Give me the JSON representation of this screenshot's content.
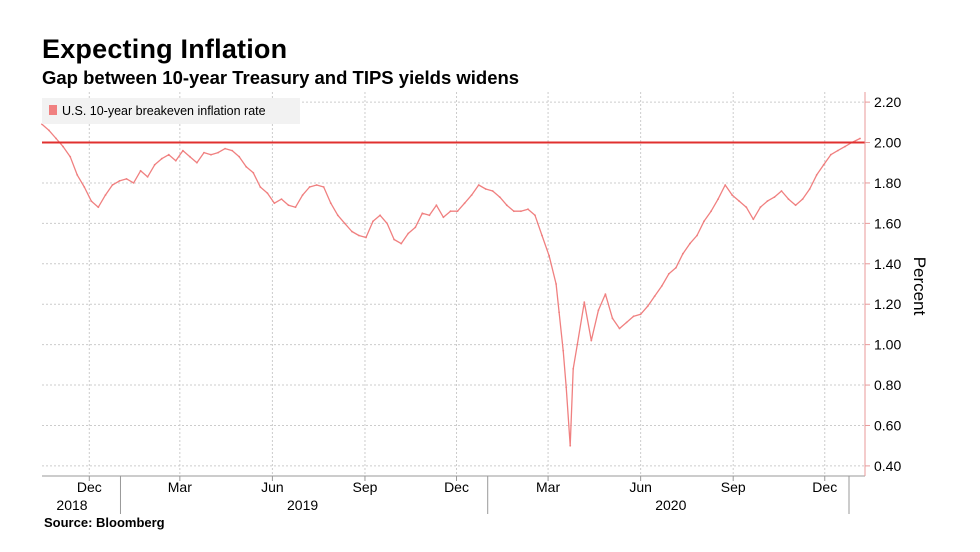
{
  "title": "Expecting Inflation",
  "subtitle": "Gap between 10-year Treasury and TIPS yields widens",
  "source": "Source: Bloomberg",
  "colors": {
    "series": "#f08080",
    "reference_line": "#e0302f",
    "grid": "#cccccc",
    "axis": "#e89a9a",
    "legend_bg": "#f2f2f2"
  },
  "chart_data": {
    "type": "line",
    "title": "Expecting Inflation",
    "subtitle": "Gap between 10-year Treasury and TIPS yields widens",
    "xlabel": "",
    "ylabel": "Percent",
    "ylim": [
      0.35,
      2.25
    ],
    "xlim": [
      "2018-10-15",
      "2021-01-10"
    ],
    "y_axis_side": "right",
    "grid": true,
    "legend_position": "top-left",
    "y_ticks": [
      "2.20",
      "2.00",
      "1.80",
      "1.60",
      "1.40",
      "1.20",
      "1.00",
      "0.80",
      "0.60",
      "0.40"
    ],
    "x_ticks": [
      {
        "date": "2018-12-01",
        "label": "Dec"
      },
      {
        "date": "2019-03-01",
        "label": "Mar"
      },
      {
        "date": "2019-06-01",
        "label": "Jun"
      },
      {
        "date": "2019-09-01",
        "label": "Sep"
      },
      {
        "date": "2019-12-01",
        "label": "Dec"
      },
      {
        "date": "2020-03-01",
        "label": "Mar"
      },
      {
        "date": "2020-06-01",
        "label": "Jun"
      },
      {
        "date": "2020-09-01",
        "label": "Sep"
      },
      {
        "date": "2020-12-01",
        "label": "Dec"
      }
    ],
    "year_labels": [
      {
        "date": "2018-11-10",
        "label": "2018"
      },
      {
        "date": "2019-07-01",
        "label": "2019"
      },
      {
        "date": "2020-07-01",
        "label": "2020"
      }
    ],
    "year_separators": [
      "2019-01-01",
      "2020-01-01",
      "2021-01-01"
    ],
    "reference_lines": [
      {
        "y": 2.0
      }
    ],
    "series": [
      {
        "name": "U.S. 10-year breakeven inflation rate",
        "x": [
          "2018-10-15",
          "2018-10-22",
          "2018-10-29",
          "2018-11-05",
          "2018-11-12",
          "2018-11-19",
          "2018-11-26",
          "2018-12-03",
          "2018-12-10",
          "2018-12-17",
          "2018-12-24",
          "2018-12-31",
          "2019-01-07",
          "2019-01-14",
          "2019-01-21",
          "2019-01-28",
          "2019-02-04",
          "2019-02-11",
          "2019-02-18",
          "2019-02-25",
          "2019-03-04",
          "2019-03-11",
          "2019-03-18",
          "2019-03-25",
          "2019-04-01",
          "2019-04-08",
          "2019-04-15",
          "2019-04-22",
          "2019-04-29",
          "2019-05-06",
          "2019-05-13",
          "2019-05-20",
          "2019-05-27",
          "2019-06-03",
          "2019-06-10",
          "2019-06-17",
          "2019-06-24",
          "2019-07-01",
          "2019-07-08",
          "2019-07-15",
          "2019-07-22",
          "2019-07-29",
          "2019-08-05",
          "2019-08-12",
          "2019-08-19",
          "2019-08-26",
          "2019-09-02",
          "2019-09-09",
          "2019-09-16",
          "2019-09-23",
          "2019-09-30",
          "2019-10-07",
          "2019-10-14",
          "2019-10-21",
          "2019-10-28",
          "2019-11-04",
          "2019-11-11",
          "2019-11-18",
          "2019-11-25",
          "2019-12-02",
          "2019-12-09",
          "2019-12-16",
          "2019-12-23",
          "2019-12-30",
          "2020-01-06",
          "2020-01-13",
          "2020-01-20",
          "2020-01-27",
          "2020-02-03",
          "2020-02-10",
          "2020-02-17",
          "2020-02-24",
          "2020-03-02",
          "2020-03-09",
          "2020-03-12",
          "2020-03-16",
          "2020-03-19",
          "2020-03-23",
          "2020-03-26",
          "2020-03-30",
          "2020-04-06",
          "2020-04-13",
          "2020-04-20",
          "2020-04-27",
          "2020-05-04",
          "2020-05-11",
          "2020-05-18",
          "2020-05-25",
          "2020-06-01",
          "2020-06-08",
          "2020-06-15",
          "2020-06-22",
          "2020-06-29",
          "2020-07-06",
          "2020-07-13",
          "2020-07-20",
          "2020-07-27",
          "2020-08-03",
          "2020-08-10",
          "2020-08-17",
          "2020-08-24",
          "2020-08-31",
          "2020-09-07",
          "2020-09-14",
          "2020-09-21",
          "2020-09-28",
          "2020-10-05",
          "2020-10-12",
          "2020-10-19",
          "2020-10-26",
          "2020-11-02",
          "2020-11-09",
          "2020-11-16",
          "2020-11-23",
          "2020-11-30",
          "2020-12-07",
          "2020-12-14",
          "2020-12-21",
          "2020-12-28",
          "2021-01-05"
        ],
        "values": [
          2.09,
          2.06,
          2.02,
          1.98,
          1.93,
          1.84,
          1.78,
          1.71,
          1.68,
          1.74,
          1.79,
          1.81,
          1.82,
          1.8,
          1.86,
          1.83,
          1.89,
          1.92,
          1.94,
          1.91,
          1.96,
          1.93,
          1.9,
          1.95,
          1.94,
          1.95,
          1.97,
          1.96,
          1.93,
          1.88,
          1.85,
          1.78,
          1.75,
          1.7,
          1.72,
          1.69,
          1.68,
          1.74,
          1.78,
          1.79,
          1.78,
          1.7,
          1.64,
          1.6,
          1.56,
          1.54,
          1.53,
          1.61,
          1.64,
          1.6,
          1.52,
          1.5,
          1.55,
          1.58,
          1.65,
          1.64,
          1.69,
          1.63,
          1.66,
          1.66,
          1.7,
          1.74,
          1.79,
          1.77,
          1.76,
          1.73,
          1.69,
          1.66,
          1.66,
          1.67,
          1.64,
          1.54,
          1.44,
          1.3,
          1.16,
          0.97,
          0.79,
          0.5,
          0.88,
          1.0,
          1.21,
          1.02,
          1.17,
          1.25,
          1.13,
          1.08,
          1.11,
          1.14,
          1.15,
          1.19,
          1.24,
          1.29,
          1.35,
          1.38,
          1.45,
          1.5,
          1.54,
          1.61,
          1.66,
          1.72,
          1.79,
          1.74,
          1.71,
          1.68,
          1.62,
          1.68,
          1.71,
          1.73,
          1.76,
          1.72,
          1.69,
          1.72,
          1.77,
          1.84,
          1.89,
          1.94,
          1.96,
          1.98,
          2.0,
          2.02
        ]
      }
    ]
  }
}
